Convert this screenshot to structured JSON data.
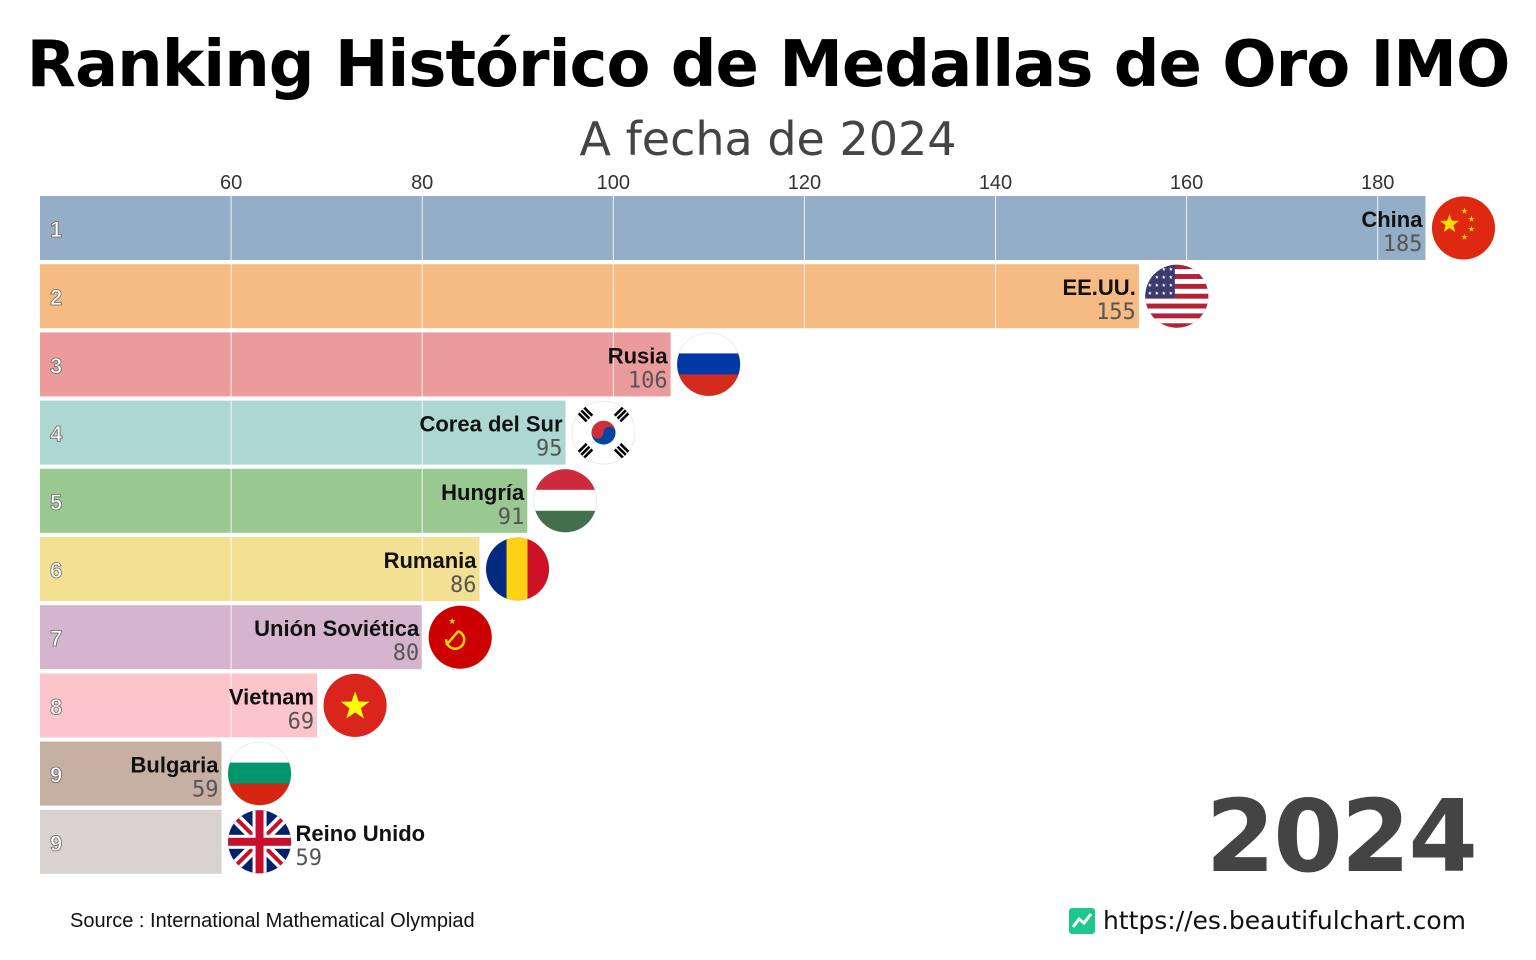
{
  "title": "Ranking Histórico de Medallas de Oro IMO",
  "subtitle": "A fecha de 2024",
  "year": "2024",
  "source": "Source : International Mathematical Olympiad",
  "website": "https://es.beautifulchart.com",
  "website_icon": "chart-line-icon",
  "chart_data": {
    "type": "bar",
    "orientation": "horizontal",
    "xlim": [
      40,
      190
    ],
    "xticks": [
      60,
      80,
      100,
      120,
      140,
      160,
      180
    ],
    "grid": true,
    "rows": [
      {
        "rank": "1",
        "country": "China",
        "value": 185,
        "color": "#94aec7",
        "flag": "china-flag-icon"
      },
      {
        "rank": "2",
        "country": "EE.UU.",
        "value": 155,
        "color": "#f5bb82",
        "flag": "usa-flag-icon"
      },
      {
        "rank": "3",
        "country": "Rusia",
        "value": 106,
        "color": "#ec9b9c",
        "flag": "russia-flag-icon"
      },
      {
        "rank": "4",
        "country": "Corea del Sur",
        "value": 95,
        "color": "#acd7d3",
        "flag": "south-korea-flag-icon"
      },
      {
        "rank": "5",
        "country": "Hungría",
        "value": 91,
        "color": "#99c991",
        "flag": "hungary-flag-icon"
      },
      {
        "rank": "6",
        "country": "Rumania",
        "value": 86,
        "color": "#f4e092",
        "flag": "romania-flag-icon"
      },
      {
        "rank": "7",
        "country": "Unión Soviética",
        "value": 80,
        "color": "#d4b5cd",
        "flag": "ussr-flag-icon"
      },
      {
        "rank": "8",
        "country": "Vietnam",
        "value": 69,
        "color": "#fcc5cb",
        "flag": "vietnam-flag-icon"
      },
      {
        "rank": "9",
        "country": "Bulgaria",
        "value": 59,
        "color": "#c6afa3",
        "flag": "bulgaria-flag-icon"
      },
      {
        "rank": "9",
        "country": "Reino Unido",
        "value": 59,
        "color": "#d8d3d0",
        "flag": "uk-flag-icon"
      }
    ]
  }
}
